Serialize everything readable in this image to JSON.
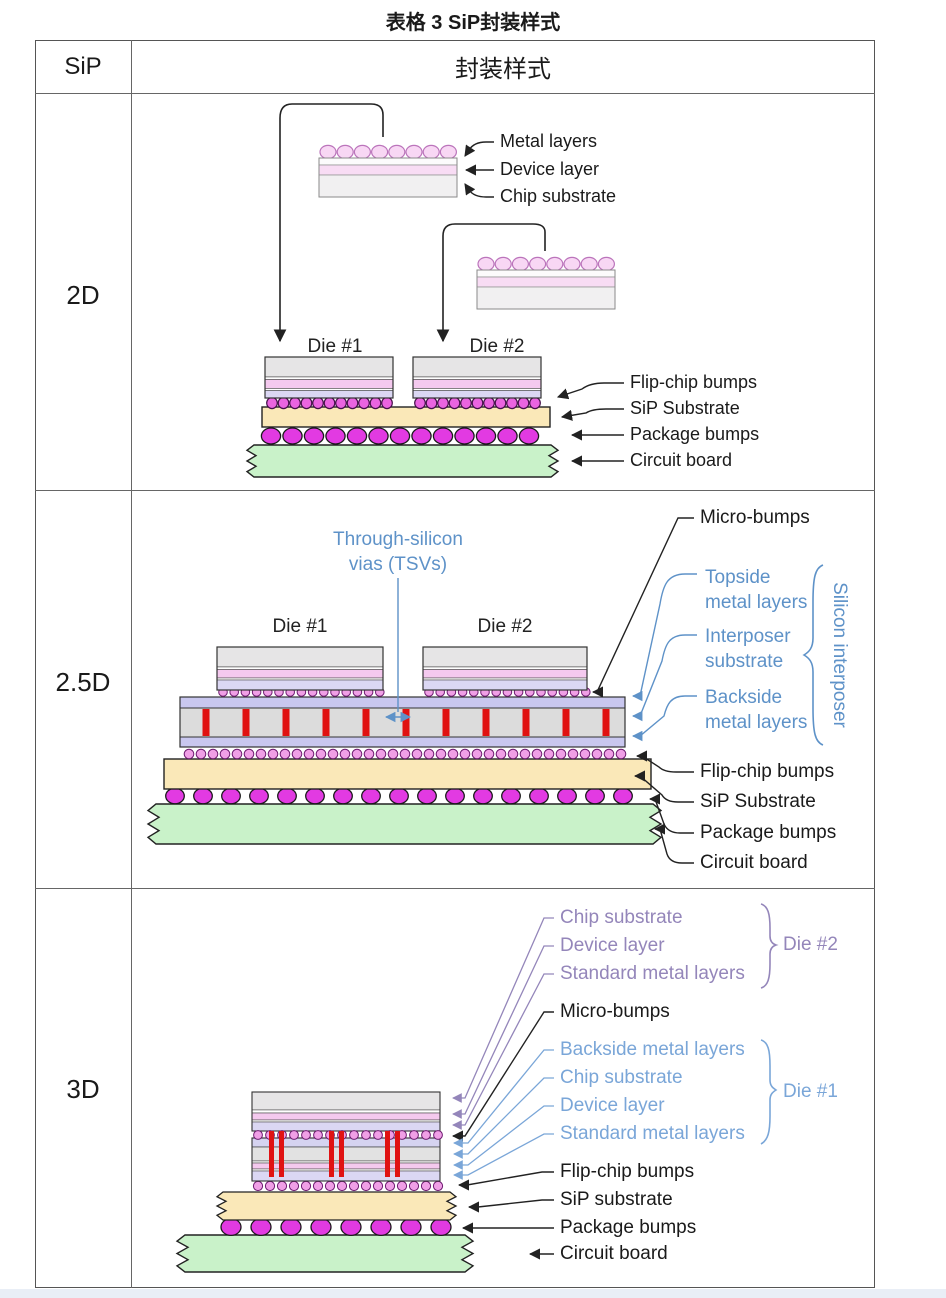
{
  "page": {
    "title": "表格 3 SiP封装样式"
  },
  "table": {
    "header": {
      "col1": "SiP",
      "col2": "封装样式"
    },
    "rows": [
      {
        "label": "2D"
      },
      {
        "label": "2.5D"
      },
      {
        "label": "3D"
      }
    ]
  },
  "colors": {
    "label_blue": "#5e92c8",
    "label_blue_3d": "#7aa6d8",
    "label_purple": "#9486ba",
    "tsv_red": "#e01212",
    "sip_substrate_tan": "#fae8b8",
    "circuit_board_green": "#c9f2c9",
    "package_bump_magenta": "#e23ae2",
    "bump_pink": "#f09fe6",
    "metal_lavender": "#d9d5f2"
  },
  "d2": {
    "labels": {
      "metal_layers": "Metal layers",
      "device_layer": "Device layer",
      "chip_substrate": "Chip substrate",
      "die1": "Die #1",
      "die2": "Die #2",
      "flip_chip_bumps": "Flip-chip bumps",
      "sip_substrate": "SiP Substrate",
      "package_bumps": "Package bumps",
      "circuit_board": "Circuit board"
    }
  },
  "d25": {
    "labels": {
      "micro_bumps": "Micro-bumps",
      "tsv_line1": "Through-silicon",
      "tsv_line2": "vias (TSVs)",
      "die1": "Die #1",
      "die2": "Die #2",
      "topside_1": "Topside",
      "topside_2": "metal layers",
      "interposer_1": "Interposer",
      "interposer_2": "substrate",
      "backside_1": "Backside",
      "backside_2": "metal layers",
      "silicon_interposer": "Silicon interposer",
      "flip_chip_bumps": "Flip-chip bumps",
      "sip_substrate": "SiP Substrate",
      "package_bumps": "Package bumps",
      "circuit_board": "Circuit board"
    }
  },
  "d3": {
    "labels": {
      "chip_substrate_die2": "Chip substrate",
      "device_layer_die2": "Device layer",
      "standard_metal_die2": "Standard metal layers",
      "die2": "Die #2",
      "micro_bumps": "Micro-bumps",
      "backside_metal": "Backside metal layers",
      "chip_substrate_die1": "Chip substrate",
      "device_layer_die1": "Device layer",
      "standard_metal_die1": "Standard metal layers",
      "die1": "Die #1",
      "flip_chip_bumps": "Flip-chip bumps",
      "sip_substrate": "SiP substrate",
      "package_bumps": "Package bumps",
      "circuit_board": "Circuit board"
    }
  }
}
